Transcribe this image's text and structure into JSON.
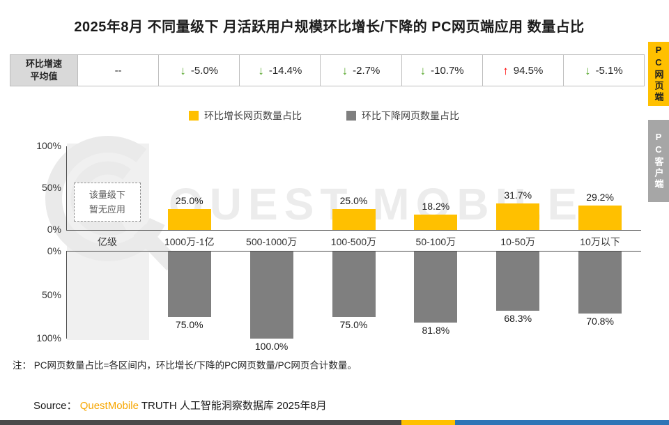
{
  "title": "2025年8月 不同量级下 月活跃用户规模环比增长/下降的 PC网页端应用 数量占比",
  "summary_table": {
    "row_label_line1": "环比增速",
    "row_label_line2": "平均值",
    "cells": [
      {
        "value": "--",
        "arrow": "none"
      },
      {
        "value": "-5.0%",
        "arrow": "down"
      },
      {
        "value": "-14.4%",
        "arrow": "down"
      },
      {
        "value": "-2.7%",
        "arrow": "down"
      },
      {
        "value": "-10.7%",
        "arrow": "down"
      },
      {
        "value": "94.5%",
        "arrow": "up"
      },
      {
        "value": "-5.1%",
        "arrow": "down"
      }
    ]
  },
  "side_tabs": [
    {
      "label": "PC网页端",
      "active": true,
      "bg": "#FFC000",
      "fg": "#1f1f1f"
    },
    {
      "label": "PC客户端",
      "active": false,
      "bg": "#A6A6A6",
      "fg": "#ffffff"
    }
  ],
  "legend": [
    {
      "label": "环比增长网页数量占比",
      "color": "#FFC000"
    },
    {
      "label": "环比下降网页数量占比",
      "color": "#7F7F7F"
    }
  ],
  "chart_data": {
    "type": "bar",
    "orientation": "mirrored-vertical",
    "title": "2025年8月 不同量级下 月活跃用户规模环比增长/下降的 PC网页端应用 数量占比",
    "categories": [
      "亿级",
      "1000万-1亿",
      "500-1000万",
      "100-500万",
      "50-100万",
      "10-50万",
      "10万以下"
    ],
    "series": [
      {
        "name": "环比增长网页数量占比",
        "color": "#FFC000",
        "values": [
          null,
          25.0,
          0,
          25.0,
          18.2,
          31.7,
          29.2
        ],
        "labels": [
          "",
          "25.0%",
          "",
          "25.0%",
          "18.2%",
          "31.7%",
          "29.2%"
        ]
      },
      {
        "name": "环比下降网页数量占比",
        "color": "#7F7F7F",
        "values": [
          null,
          75.0,
          100.0,
          75.0,
          81.8,
          68.3,
          70.8
        ],
        "labels": [
          "",
          "75.0%",
          "100.0%",
          "75.0%",
          "81.8%",
          "68.3%",
          "70.8%"
        ]
      }
    ],
    "mom_growth_avg": [
      "--",
      "-5.0%",
      "-14.4%",
      "-2.7%",
      "-10.7%",
      "94.5%",
      "-5.1%"
    ],
    "y_axis_top_ticks": [
      "100%",
      "50%",
      "0%"
    ],
    "y_axis_bottom_ticks": [
      "0%",
      "50%",
      "100%"
    ],
    "ylim": [
      0,
      100
    ],
    "grid": false,
    "legend_position": "top-center",
    "empty_tier_note": [
      "该量级下",
      "暂无应用"
    ],
    "watermark": "QUEST MOBILE"
  },
  "footnote": "注： PC网页数量占比=各区间内，环比增长/下降的PC网页数量/PC网页合计数量。",
  "source": {
    "prefix": "Source：",
    "brand": "QuestMobile",
    "rest": " TRUTH 人工智能洞察数据库 2025年8月"
  },
  "colors": {
    "growth": "#FFC000",
    "decline": "#7F7F7F",
    "arrow_up": "#FF0000",
    "arrow_down": "#55A629",
    "brand_orange": "#F7A600"
  },
  "footer_bar": [
    {
      "color": "#4a4a4a",
      "width": "60%"
    },
    {
      "color": "#ffc000",
      "width": "8%"
    },
    {
      "color": "#2e75b6",
      "width": "32%"
    }
  ]
}
